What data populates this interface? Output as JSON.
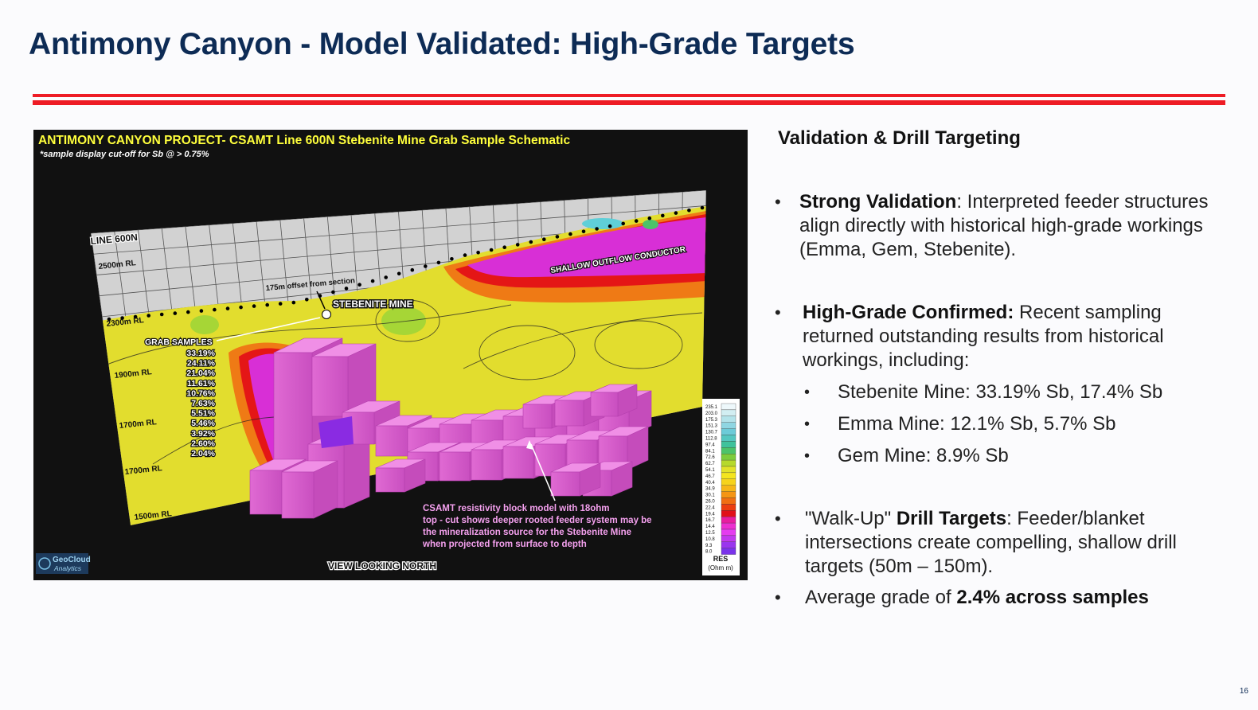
{
  "slide": {
    "title": "Antimony Canyon - Model Validated: High-Grade Targets",
    "page_number": "16",
    "accent_color": "#ee1c25",
    "title_color": "#0d2b55"
  },
  "figure": {
    "header": "ANTIMONY CANYON PROJECT- CSAMT Line 600N Stebenite Mine Grab Sample Schematic",
    "subheader": "*sample display cut-off for Sb @ > 0.75%",
    "line_label": "LINE 600N",
    "rl_labels": [
      "2500m RL",
      "2300m RL",
      "1900m RL",
      "1700m RL",
      "1700m RL",
      "1500m RL"
    ],
    "offset_label": "175m offset from section",
    "mine_label": "STEBENITE MINE",
    "conductor_label": "SHALLOW OUTFLOW CONDUCTOR",
    "grab_title": "GRAB SAMPLES",
    "grab_samples": [
      "33.19%",
      "24.11%",
      "21.04%",
      "11.61%",
      "10.76%",
      "7.63%",
      "5.51%",
      "5.46%",
      "3.92%",
      "2.60%",
      "2.04%"
    ],
    "caption": [
      "CSAMT resistivity block model with 18ohm",
      "top - cut shows deeper rooted feeder system may be",
      "the mineralization source for the Stebenite Mine",
      "when projected from surface to depth"
    ],
    "view_label": "VIEW LOOKING NORTH",
    "logo_line1": "GeoCloud",
    "logo_line2": "Analytics",
    "legend_values": [
      "235.1",
      "203.0",
      "175.3",
      "151.3",
      "130.7",
      "112.8",
      "97.4",
      "84.1",
      "72.6",
      "62.7",
      "54.1",
      "46.7",
      "40.4",
      "34.9",
      "30.1",
      "26.0",
      "22.4",
      "19.4",
      "16.7",
      "14.4",
      "12.5",
      "10.8",
      "9.3",
      "8.0"
    ],
    "legend_colors": [
      "#eef8fb",
      "#d2eef2",
      "#b3e3ea",
      "#8fd6e2",
      "#6ccbd8",
      "#54c7c0",
      "#3fc29c",
      "#4cc36a",
      "#7dcc3c",
      "#b6d92c",
      "#e2e22a",
      "#f4e51f",
      "#f6d31c",
      "#f6b618",
      "#f49514",
      "#f06f12",
      "#ec3e10",
      "#e0101a",
      "#e81da0",
      "#ec2fd0",
      "#e43cef",
      "#c238ef",
      "#9a35ee",
      "#7a33ea"
    ],
    "legend_unit_1": "RES",
    "legend_unit_2": "(Ohm m)"
  },
  "panel": {
    "heading": "Validation & Drill Targeting",
    "bullets": [
      {
        "bold": "Strong Validation",
        "text": ": Interpreted feeder structures align directly with historical high-grade workings (Emma, Gem, Stebenite)."
      },
      {
        "bold": "High-Grade Confirmed:",
        "text": " Recent sampling returned outstanding results from historical workings, including:"
      },
      {
        "pre": "\"Walk-Up\" ",
        "bold": "Drill Targets",
        "text": ": Feeder/blanket intersections create compelling, shallow drill targets (50m – 150m)."
      },
      {
        "pre": "Average grade of ",
        "bold": "2.4% across samples"
      }
    ],
    "sub_bullets": [
      "Stebenite Mine: 33.19% Sb, 17.4% Sb",
      "Emma Mine: 12.1% Sb, 5.7% Sb",
      "Gem Mine: 8.9% Sb"
    ],
    "bullet_glyph": "•"
  }
}
